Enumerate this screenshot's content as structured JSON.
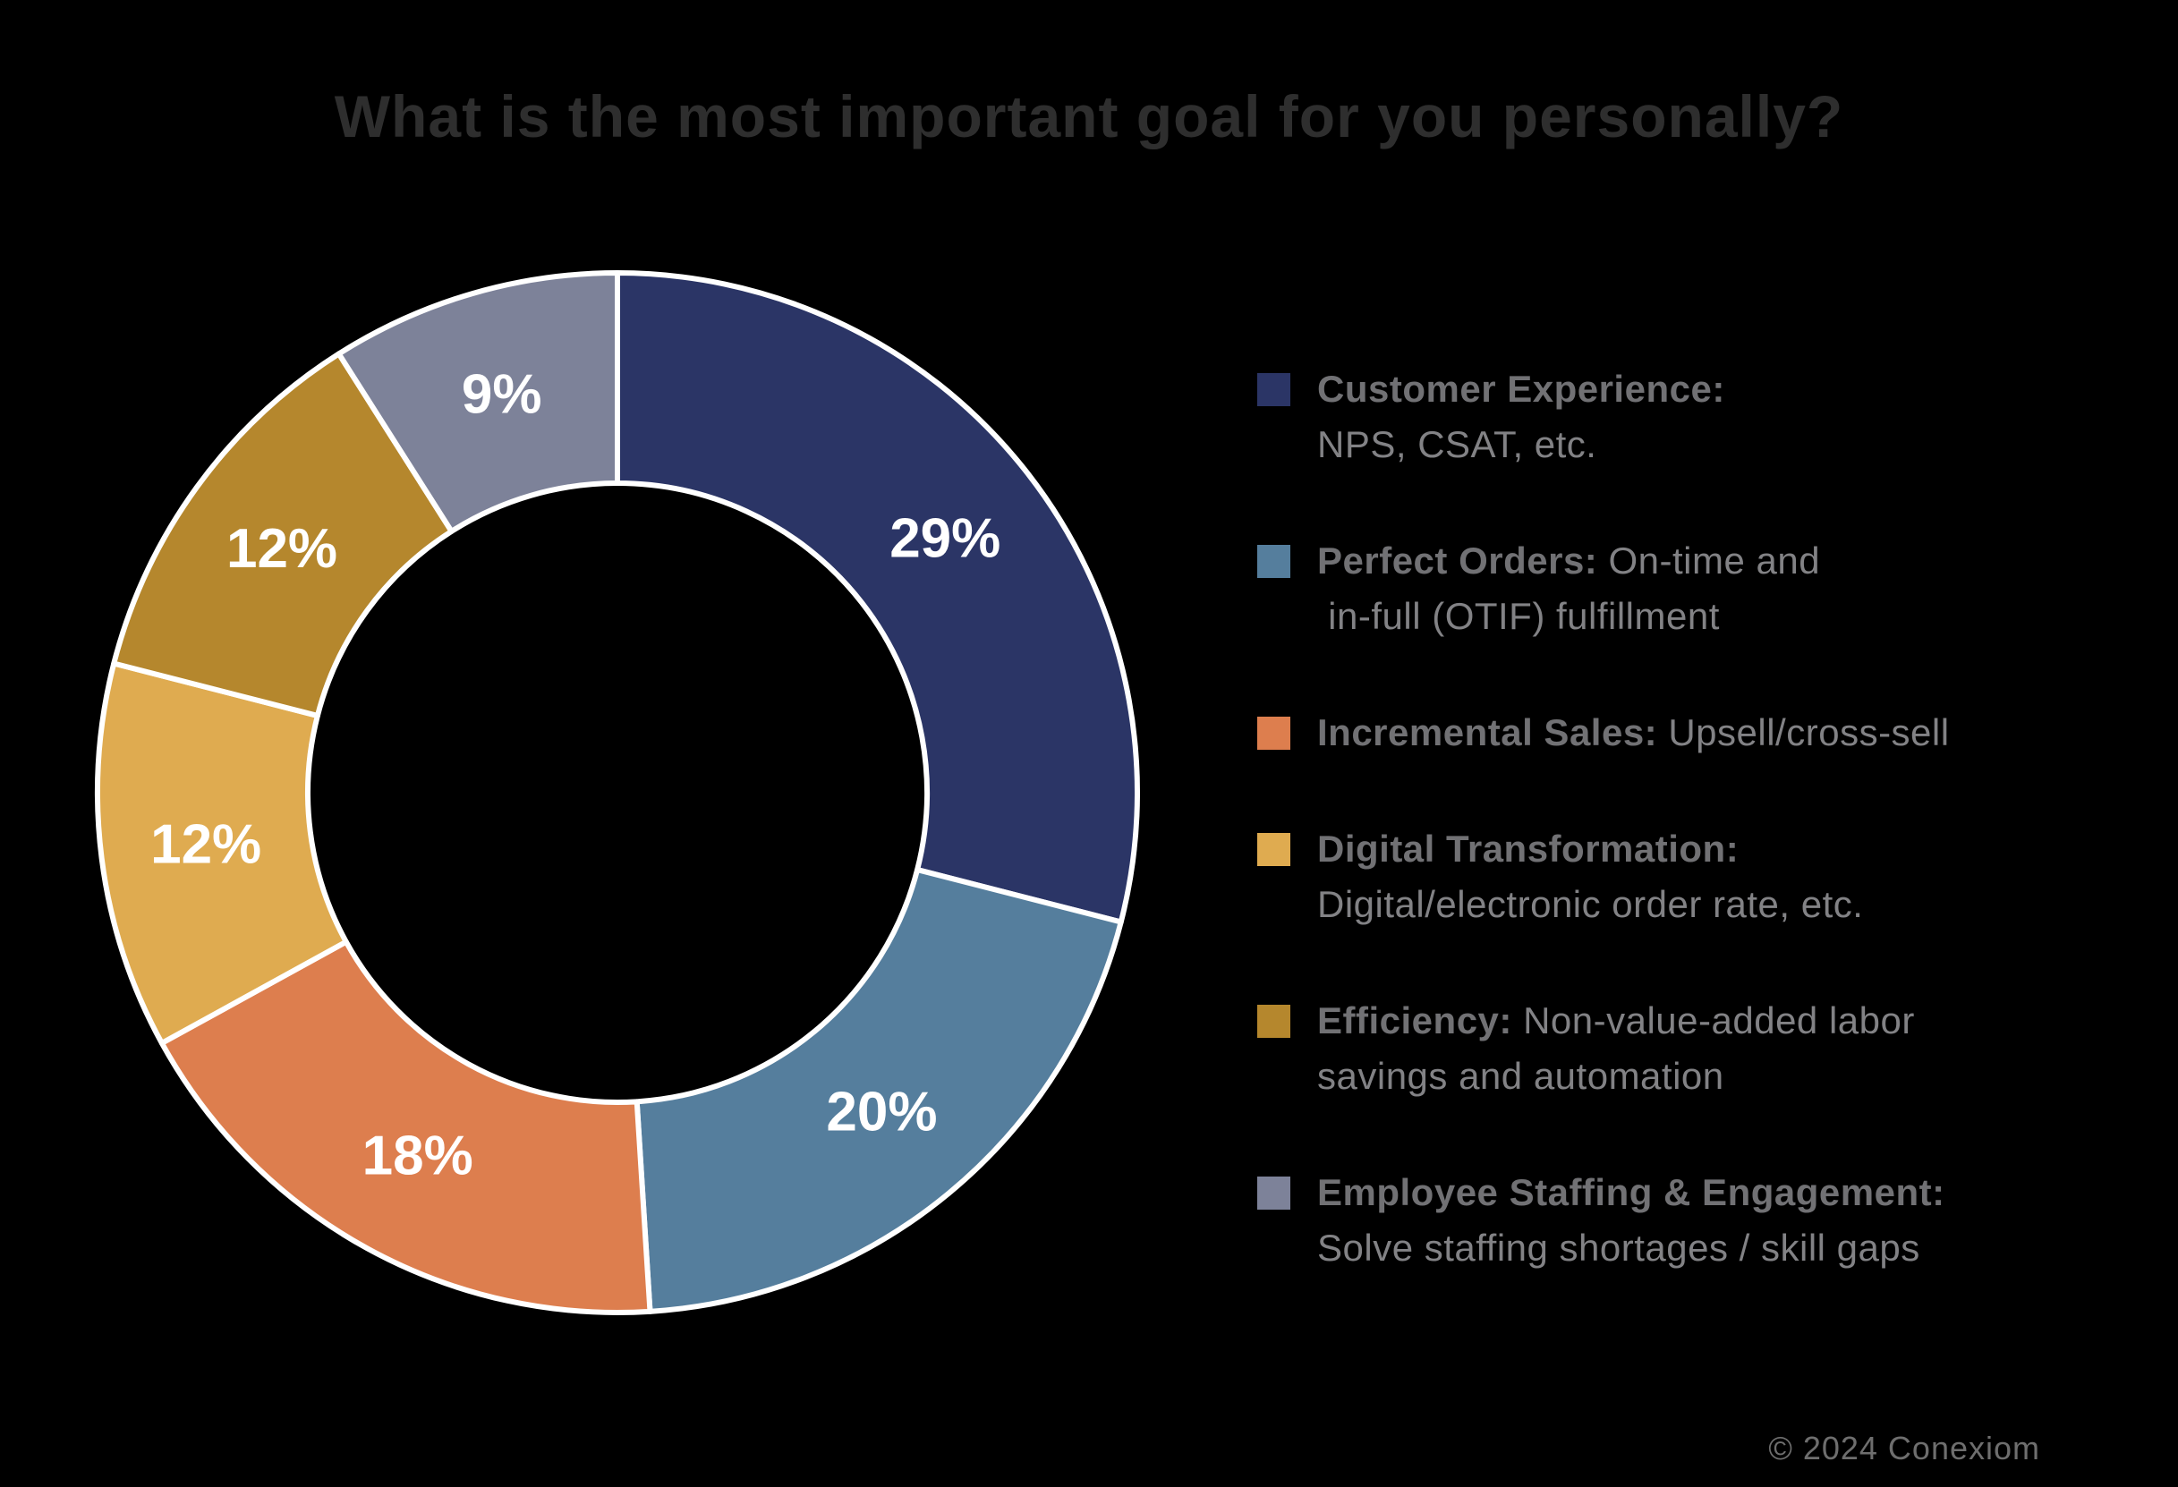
{
  "title": "What is the most important goal for you personally?",
  "footer": {
    "copyright": "© 2024 Conexiom"
  },
  "colors": {
    "background": "#000000",
    "slice_stroke": "#FFFFFF",
    "title_text": "#2E2E2E",
    "legend_label_text": "#717174",
    "legend_desc_text": "#828285",
    "percent_label_text": "#FFFFFF",
    "footer_text": "#6E6E6E"
  },
  "chart_data": {
    "type": "pie",
    "subtype": "donut",
    "title": "What is the most important goal for you personally?",
    "start_angle_deg": 0,
    "direction": "clockwise",
    "inner_radius_ratio": 0.595,
    "legend_position": "right",
    "slices": [
      {
        "label": "Customer Experience",
        "value": 29,
        "display": "29%",
        "color": "#2B3566"
      },
      {
        "label": "Perfect Orders",
        "value": 20,
        "display": "20%",
        "color": "#557E9D"
      },
      {
        "label": "Incremental Sales",
        "value": 18,
        "display": "18%",
        "color": "#DD7E4E"
      },
      {
        "label": "Digital Transformation",
        "value": 12,
        "display": "12%",
        "color": "#DFAB50"
      },
      {
        "label": "Efficiency",
        "value": 12,
        "display": "12%",
        "color": "#B5872D"
      },
      {
        "label": "Employee Staffing & Engagement",
        "value": 9,
        "display": "9%",
        "color": "#7D8299"
      }
    ]
  },
  "legend": {
    "items": [
      {
        "label": "Customer Experience:",
        "desc": "\nNPS, CSAT, etc.",
        "color": "#2B3566"
      },
      {
        "label": "Perfect Orders:",
        "desc": " On-time and\n in-full (OTIF) fulfillment",
        "color": "#557E9D"
      },
      {
        "label": "Incremental Sales:",
        "desc": " Upsell/cross-sell",
        "color": "#DD7E4E"
      },
      {
        "label": "Digital Transformation:",
        "desc": "\nDigital/electronic order rate, etc.",
        "color": "#DFAB50"
      },
      {
        "label": "Efficiency:",
        "desc": " Non-value-added labor\nsavings and automation",
        "color": "#B5872D"
      },
      {
        "label": "Employee Staffing & Engagement:",
        "desc": "\nSolve staffing shortages / skill gaps",
        "color": "#7D8299"
      }
    ]
  }
}
